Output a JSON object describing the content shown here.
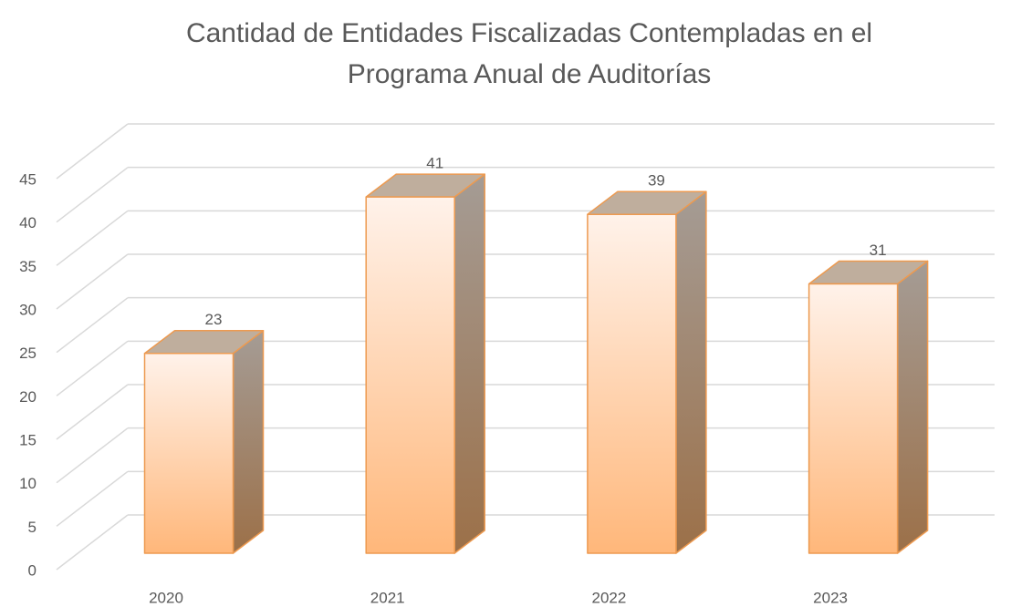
{
  "chart_data": {
    "type": "bar3d",
    "title": "Cantidad de Entidades Fiscalizadas Contempladas en el Programa Anual de Auditorías",
    "categories": [
      "2020",
      "2021",
      "2022",
      "2023"
    ],
    "values": [
      23,
      41,
      39,
      31
    ],
    "color": "#ffb77a",
    "ylim": [
      0,
      45
    ],
    "yticks": [
      0,
      5,
      10,
      15,
      20,
      25,
      30,
      35,
      40,
      45
    ],
    "grid": true
  }
}
